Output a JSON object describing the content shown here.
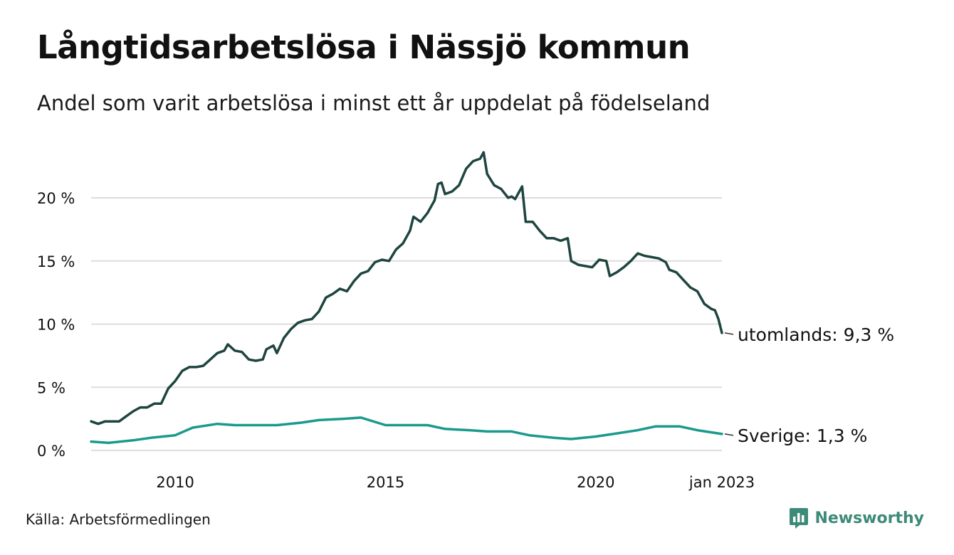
{
  "title": "Långtidsarbetslösa i Nässjö kommun",
  "subtitle": "Andel som varit arbetslösa i minst ett år uppdelat på födelseland",
  "source": "Källa: Arbetsförmedlingen",
  "brand": {
    "name": "Newsworthy",
    "icon": "newsworthy-logo-icon",
    "color": "#3d8a78"
  },
  "chart_data": {
    "type": "line",
    "title": "Långtidsarbetslösa i Nässjö kommun",
    "subtitle": "Andel som varit arbetslösa i minst ett år uppdelat på födelseland",
    "ylim": [
      0,
      24
    ],
    "y_ticks": [
      0,
      5,
      10,
      15,
      20
    ],
    "y_tick_labels": [
      "0 %",
      "5 %",
      "10 %",
      "15 %",
      "20 %"
    ],
    "x_range": [
      "2008-01",
      "2023-01"
    ],
    "x_ticks": [
      "2010-01",
      "2015-01",
      "2020-01",
      "2023-01"
    ],
    "x_tick_labels": [
      "2010",
      "2015",
      "2020",
      "jan 2023"
    ],
    "grid": true,
    "series": [
      {
        "name": "utomlands",
        "color": "#1e4540",
        "end_label": "utomlands: 9,3 %",
        "points": [
          [
            "2008-01",
            2.3
          ],
          [
            "2008-03",
            2.1
          ],
          [
            "2008-05",
            2.3
          ],
          [
            "2008-07",
            2.3
          ],
          [
            "2008-09",
            2.3
          ],
          [
            "2008-11",
            2.7
          ],
          [
            "2009-01",
            3.1
          ],
          [
            "2009-03",
            3.4
          ],
          [
            "2009-05",
            3.4
          ],
          [
            "2009-07",
            3.7
          ],
          [
            "2009-09",
            3.7
          ],
          [
            "2009-11",
            4.9
          ],
          [
            "2010-01",
            5.5
          ],
          [
            "2010-03",
            6.3
          ],
          [
            "2010-05",
            6.6
          ],
          [
            "2010-07",
            6.6
          ],
          [
            "2010-09",
            6.7
          ],
          [
            "2010-11",
            7.2
          ],
          [
            "2011-01",
            7.7
          ],
          [
            "2011-03",
            7.9
          ],
          [
            "2011-04",
            8.4
          ],
          [
            "2011-06",
            7.9
          ],
          [
            "2011-08",
            7.8
          ],
          [
            "2011-10",
            7.2
          ],
          [
            "2011-12",
            7.1
          ],
          [
            "2012-02",
            7.2
          ],
          [
            "2012-03",
            8.0
          ],
          [
            "2012-05",
            8.3
          ],
          [
            "2012-06",
            7.7
          ],
          [
            "2012-08",
            8.9
          ],
          [
            "2012-10",
            9.6
          ],
          [
            "2012-12",
            10.1
          ],
          [
            "2013-02",
            10.3
          ],
          [
            "2013-04",
            10.4
          ],
          [
            "2013-06",
            11.0
          ],
          [
            "2013-08",
            12.1
          ],
          [
            "2013-10",
            12.4
          ],
          [
            "2013-12",
            12.8
          ],
          [
            "2014-02",
            12.6
          ],
          [
            "2014-04",
            13.4
          ],
          [
            "2014-06",
            14.0
          ],
          [
            "2014-08",
            14.2
          ],
          [
            "2014-10",
            14.9
          ],
          [
            "2014-12",
            15.1
          ],
          [
            "2015-02",
            15.0
          ],
          [
            "2015-04",
            15.9
          ],
          [
            "2015-06",
            16.4
          ],
          [
            "2015-08",
            17.4
          ],
          [
            "2015-09",
            18.5
          ],
          [
            "2015-11",
            18.1
          ],
          [
            "2016-01",
            18.8
          ],
          [
            "2016-03",
            19.8
          ],
          [
            "2016-04",
            21.1
          ],
          [
            "2016-05",
            21.2
          ],
          [
            "2016-06",
            20.3
          ],
          [
            "2016-08",
            20.5
          ],
          [
            "2016-10",
            21.0
          ],
          [
            "2016-12",
            22.3
          ],
          [
            "2017-02",
            22.9
          ],
          [
            "2017-04",
            23.1
          ],
          [
            "2017-05",
            23.6
          ],
          [
            "2017-06",
            21.9
          ],
          [
            "2017-08",
            21.0
          ],
          [
            "2017-10",
            20.7
          ],
          [
            "2017-12",
            20.0
          ],
          [
            "2018-01",
            20.1
          ],
          [
            "2018-02",
            19.9
          ],
          [
            "2018-04",
            20.9
          ],
          [
            "2018-05",
            18.1
          ],
          [
            "2018-07",
            18.1
          ],
          [
            "2018-09",
            17.4
          ],
          [
            "2018-11",
            16.8
          ],
          [
            "2019-01",
            16.8
          ],
          [
            "2019-03",
            16.6
          ],
          [
            "2019-05",
            16.8
          ],
          [
            "2019-06",
            15.0
          ],
          [
            "2019-08",
            14.7
          ],
          [
            "2019-10",
            14.6
          ],
          [
            "2019-12",
            14.5
          ],
          [
            "2020-02",
            15.1
          ],
          [
            "2020-04",
            15.0
          ],
          [
            "2020-05",
            13.8
          ],
          [
            "2020-07",
            14.1
          ],
          [
            "2020-09",
            14.5
          ],
          [
            "2020-11",
            15.0
          ],
          [
            "2021-01",
            15.6
          ],
          [
            "2021-03",
            15.4
          ],
          [
            "2021-05",
            15.3
          ],
          [
            "2021-07",
            15.2
          ],
          [
            "2021-09",
            14.9
          ],
          [
            "2021-10",
            14.3
          ],
          [
            "2021-12",
            14.1
          ],
          [
            "2022-02",
            13.5
          ],
          [
            "2022-04",
            12.9
          ],
          [
            "2022-06",
            12.6
          ],
          [
            "2022-08",
            11.6
          ],
          [
            "2022-10",
            11.2
          ],
          [
            "2022-11",
            11.1
          ],
          [
            "2022-12",
            10.4
          ],
          [
            "2023-01",
            9.3
          ]
        ]
      },
      {
        "name": "Sverige",
        "color": "#1a9a8c",
        "end_label": "Sverige: 1,3 %",
        "points": [
          [
            "2008-01",
            0.7
          ],
          [
            "2008-06",
            0.6
          ],
          [
            "2009-01",
            0.8
          ],
          [
            "2009-06",
            1.0
          ],
          [
            "2010-01",
            1.2
          ],
          [
            "2010-06",
            1.8
          ],
          [
            "2011-01",
            2.1
          ],
          [
            "2011-06",
            2.0
          ],
          [
            "2012-01",
            2.0
          ],
          [
            "2012-06",
            2.0
          ],
          [
            "2013-01",
            2.2
          ],
          [
            "2013-06",
            2.4
          ],
          [
            "2014-01",
            2.5
          ],
          [
            "2014-06",
            2.6
          ],
          [
            "2015-01",
            2.0
          ],
          [
            "2015-06",
            2.0
          ],
          [
            "2016-01",
            2.0
          ],
          [
            "2016-06",
            1.7
          ],
          [
            "2017-01",
            1.6
          ],
          [
            "2017-06",
            1.5
          ],
          [
            "2018-01",
            1.5
          ],
          [
            "2018-06",
            1.2
          ],
          [
            "2019-01",
            1.0
          ],
          [
            "2019-06",
            0.9
          ],
          [
            "2020-01",
            1.1
          ],
          [
            "2020-06",
            1.3
          ],
          [
            "2021-01",
            1.6
          ],
          [
            "2021-06",
            1.9
          ],
          [
            "2022-01",
            1.9
          ],
          [
            "2022-06",
            1.6
          ],
          [
            "2023-01",
            1.3
          ]
        ]
      }
    ]
  }
}
